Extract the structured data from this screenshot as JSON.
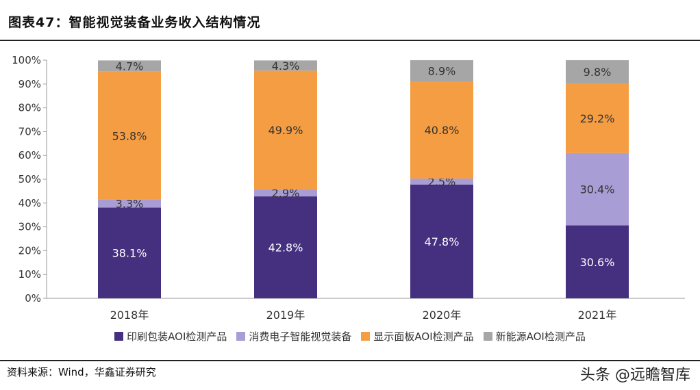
{
  "title": "图表47：智能视觉装备业务收入结构情况",
  "source": "资料来源：Wind，华鑫证券研究",
  "watermark": "头条 @远瞻智库",
  "chart_data": {
    "type": "bar",
    "stacked": true,
    "categories": [
      "2018年",
      "2019年",
      "2020年",
      "2021年"
    ],
    "ylim": [
      0,
      100
    ],
    "yticks": [
      "0%",
      "10%",
      "20%",
      "30%",
      "40%",
      "50%",
      "60%",
      "70%",
      "80%",
      "90%",
      "100%"
    ],
    "grid": false,
    "legend_position": "bottom",
    "series": [
      {
        "name": "印刷包装AOI检测产品",
        "color": "#45307f",
        "label_color": "#ffffff",
        "values": [
          38.1,
          42.8,
          47.8,
          30.6
        ],
        "labels": [
          "38.1%",
          "42.8%",
          "47.8%",
          "30.6%"
        ]
      },
      {
        "name": "消费电子智能视觉装备",
        "color": "#a99dd6",
        "label_color": "#333333",
        "values": [
          3.3,
          2.9,
          2.5,
          30.4
        ],
        "labels": [
          "3.3%",
          "2.9%",
          "2.5%",
          "30.4%"
        ]
      },
      {
        "name": "显示面板AOI检测产品",
        "color": "#f59d43",
        "label_color": "#333333",
        "values": [
          53.8,
          49.9,
          40.8,
          29.2
        ],
        "labels": [
          "53.8%",
          "49.9%",
          "40.8%",
          "29.2%"
        ]
      },
      {
        "name": "新能源AOI检测产品",
        "color": "#a6a6a6",
        "label_color": "#333333",
        "values": [
          4.7,
          4.3,
          8.9,
          9.8
        ],
        "labels": [
          "4.7%",
          "4.3%",
          "8.9%",
          "9.8%"
        ]
      }
    ]
  }
}
